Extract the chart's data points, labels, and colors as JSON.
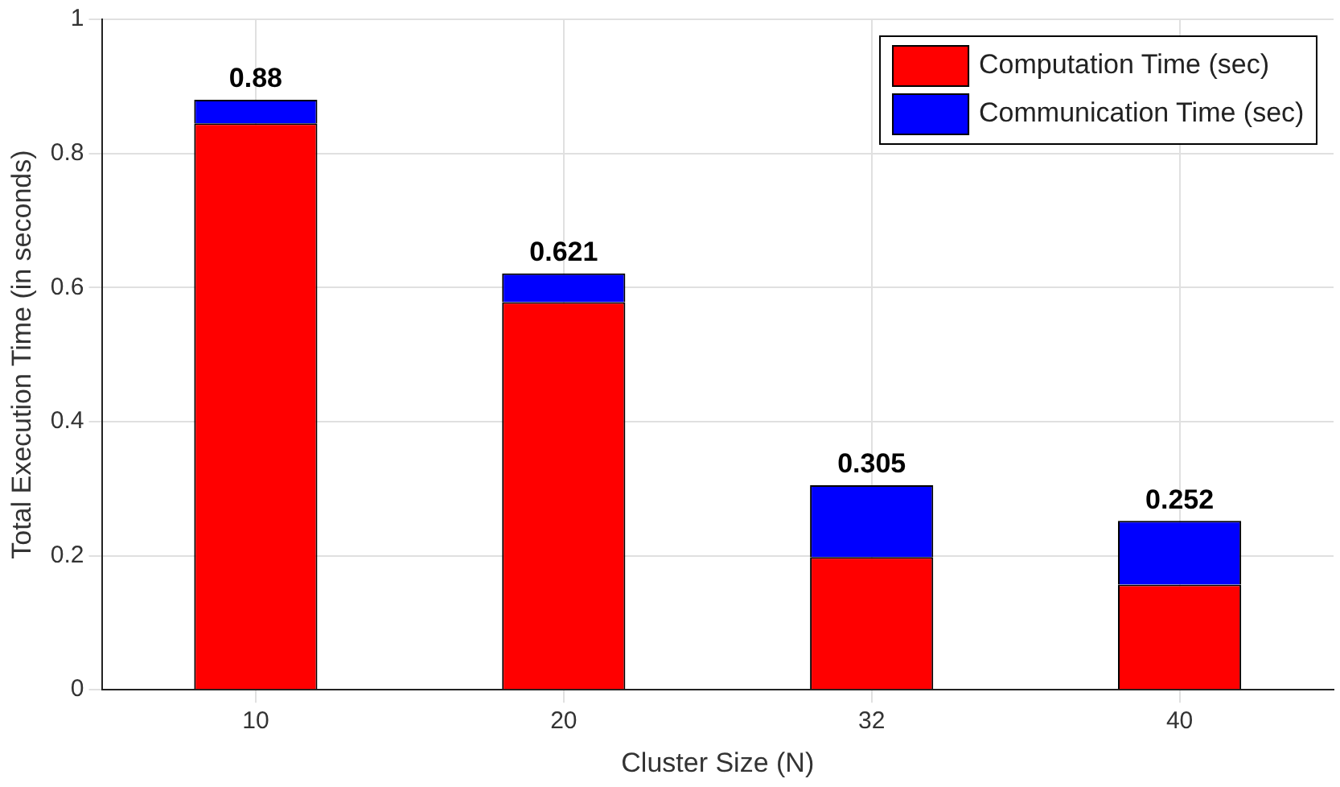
{
  "chart_data": {
    "type": "bar",
    "xlabel": "Cluster Size (N)",
    "ylabel": "Total Execution Time (in seconds)",
    "categories": [
      "10",
      "20",
      "32",
      "40"
    ],
    "stacked": true,
    "series": [
      {
        "name": "Computation Time (sec)",
        "color": "#ff0000",
        "values": [
          0.845,
          0.578,
          0.198,
          0.157
        ]
      },
      {
        "name": "Communication Time (sec)",
        "color": "#0000ff",
        "values": [
          0.035,
          0.043,
          0.107,
          0.095
        ]
      }
    ],
    "totals": [
      "0.88",
      "0.621",
      "0.305",
      "0.252"
    ],
    "ylim": [
      0,
      1
    ],
    "yticks": [
      0,
      0.2,
      0.4,
      0.6,
      0.8,
      1
    ],
    "grid": true,
    "legend": "top right"
  }
}
